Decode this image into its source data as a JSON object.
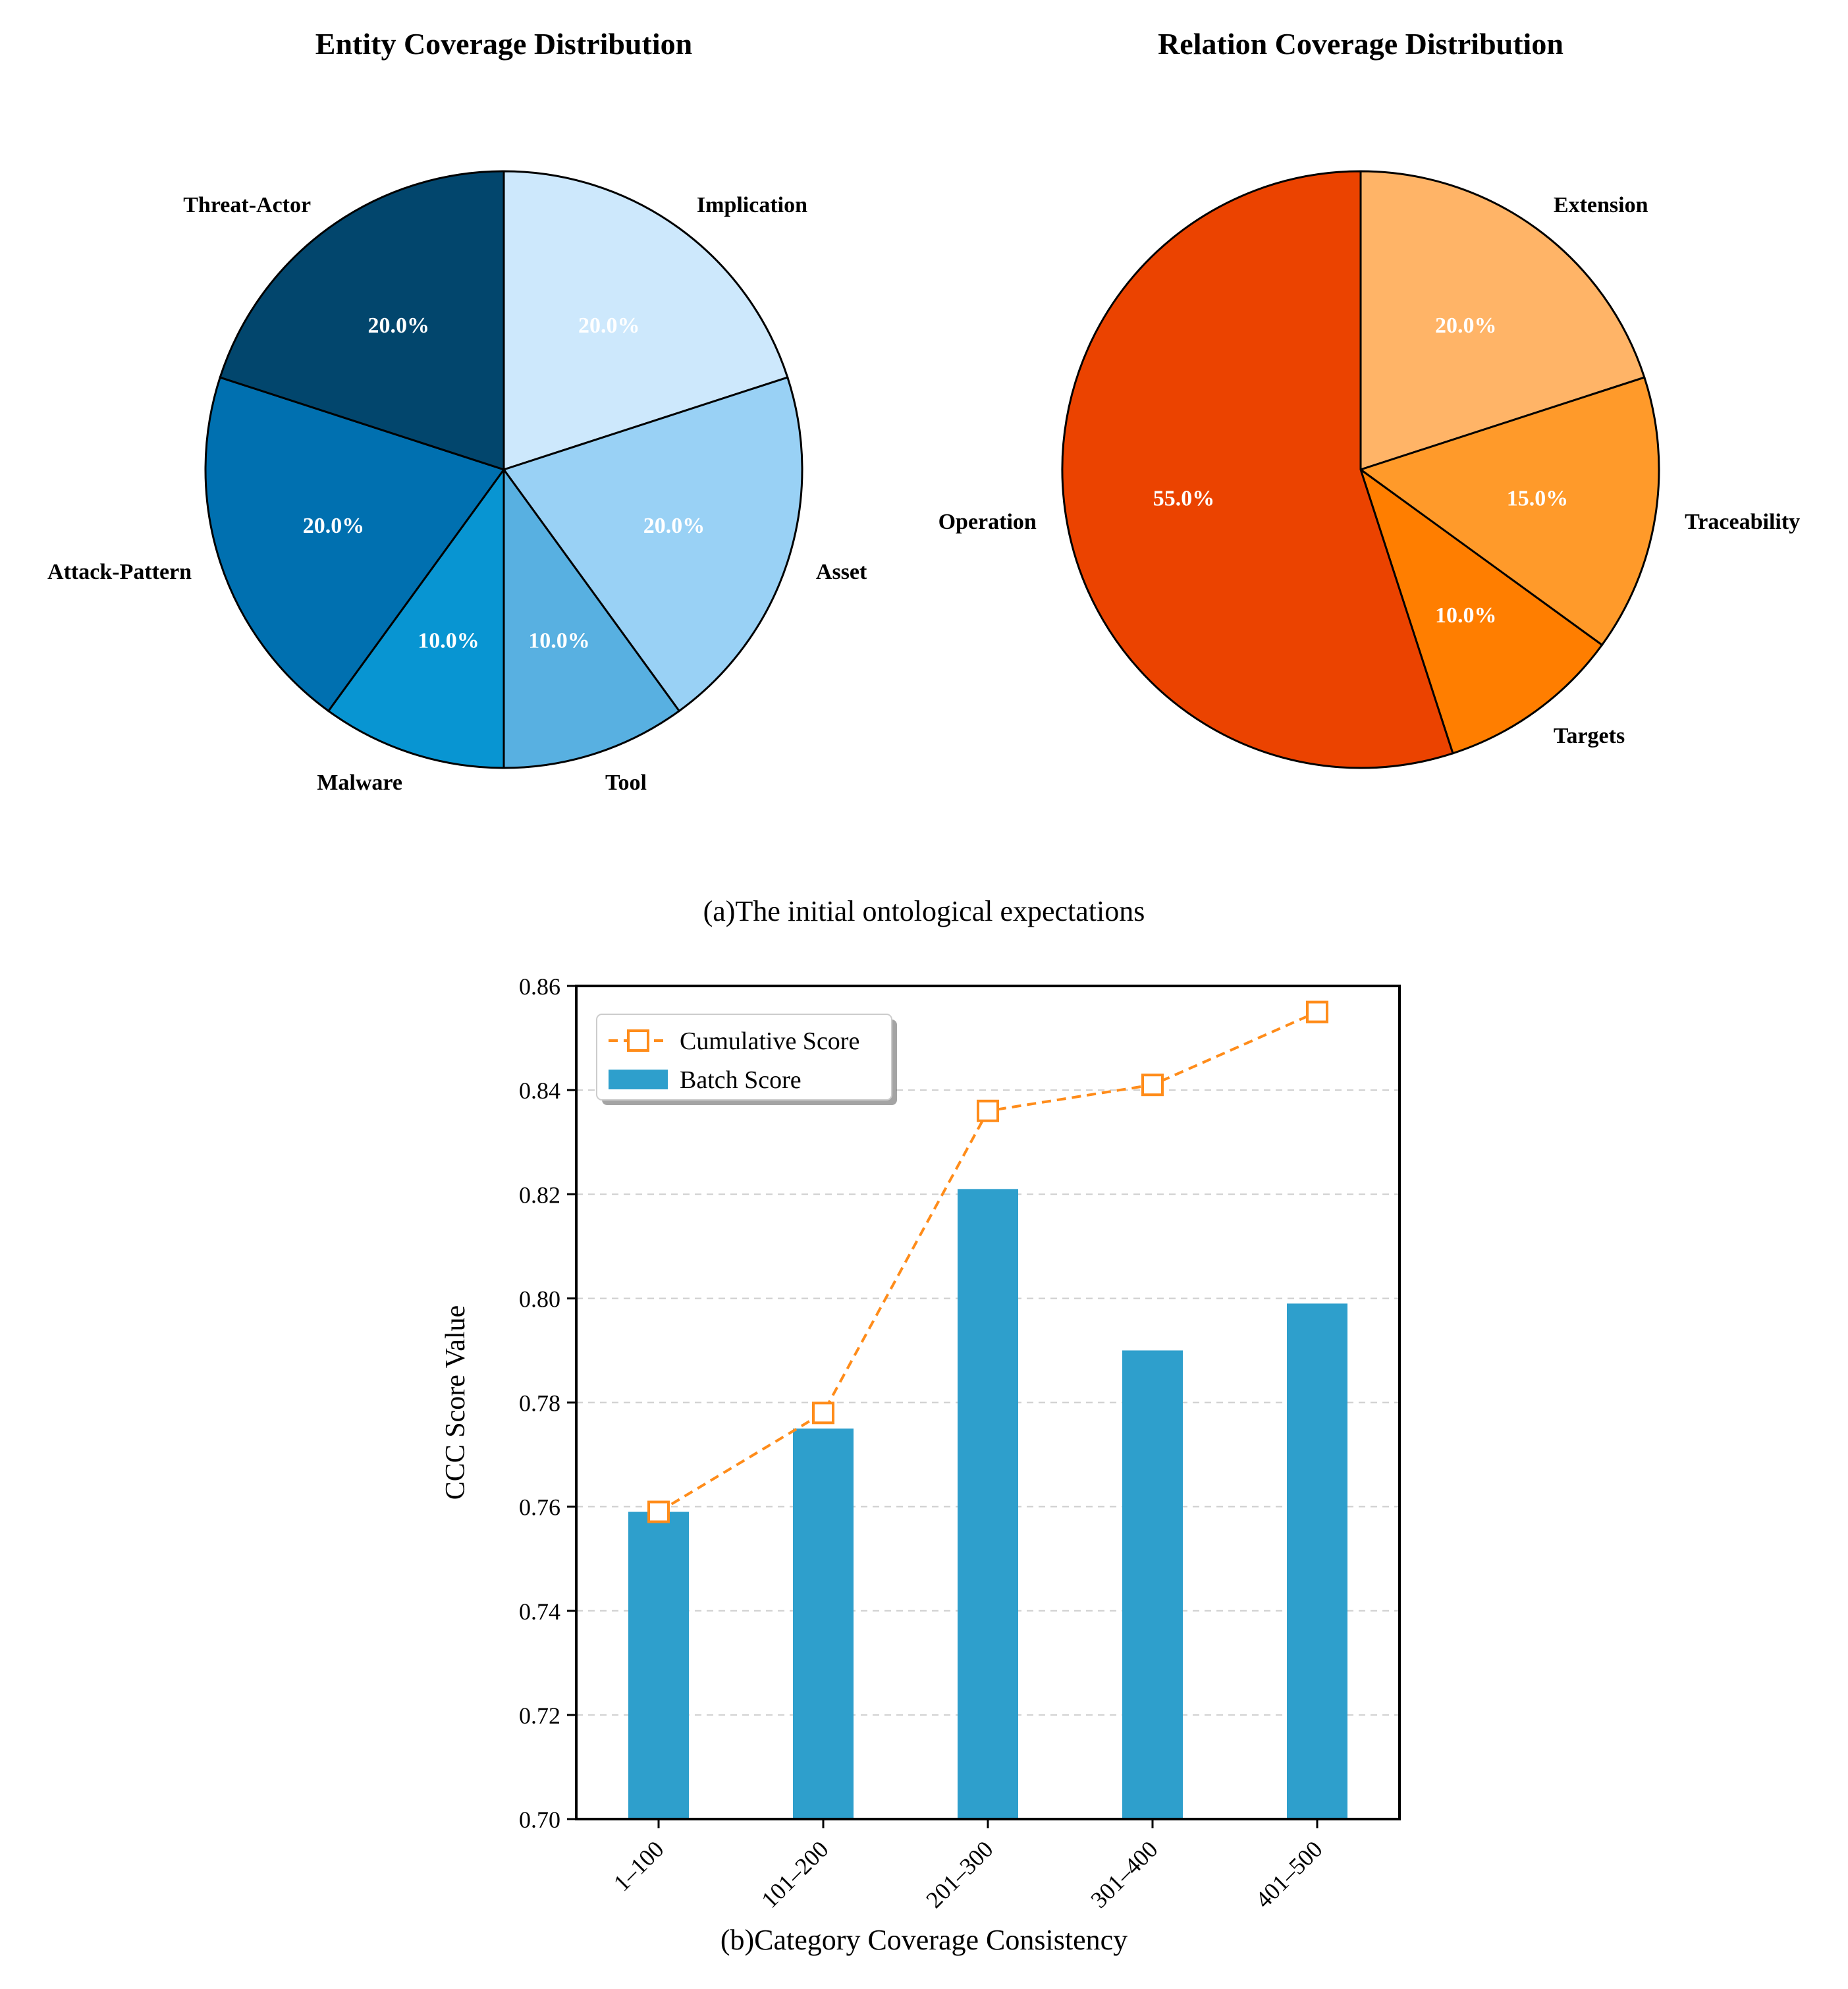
{
  "figure": {
    "caption_a": "(a)The initial ontological expectations",
    "caption_b": "(b)Category Coverage Consistency"
  },
  "chart_data": [
    {
      "type": "pie",
      "title": "Entity Coverage Distribution",
      "slices": [
        {
          "label": "Implication",
          "value": 20.0,
          "pct": "20.0%",
          "color": "#cde8fc"
        },
        {
          "label": "Asset",
          "value": 20.0,
          "pct": "20.0%",
          "color": "#99d1f5"
        },
        {
          "label": "Tool",
          "value": 10.0,
          "pct": "10.0%",
          "color": "#58b0e1"
        },
        {
          "label": "Malware",
          "value": 10.0,
          "pct": "10.0%",
          "color": "#0895d2"
        },
        {
          "label": "Attack-Pattern",
          "value": 20.0,
          "pct": "20.0%",
          "color": "#0070b0"
        },
        {
          "label": "Threat-Actor",
          "value": 20.0,
          "pct": "20.0%",
          "color": "#02466d"
        }
      ],
      "start": "top",
      "direction": "clockwise"
    },
    {
      "type": "pie",
      "title": "Relation Coverage Distribution",
      "slices": [
        {
          "label": "Extension",
          "value": 20.0,
          "pct": "20.0%",
          "color": "#ffb467"
        },
        {
          "label": "Traceability",
          "value": 15.0,
          "pct": "15.0%",
          "color": "#ff9a2a"
        },
        {
          "label": "Targets",
          "value": 10.0,
          "pct": "10.0%",
          "color": "#ff7e00"
        },
        {
          "label": "Operation",
          "value": 55.0,
          "pct": "55.0%",
          "color": "#eb4300"
        }
      ],
      "start": "top",
      "direction": "clockwise"
    },
    {
      "type": "bar",
      "categories": [
        "1–100",
        "101–200",
        "201–300",
        "301–400",
        "401–500"
      ],
      "series": [
        {
          "name": "Batch Score",
          "kind": "bar",
          "values": [
            0.759,
            0.775,
            0.821,
            0.79,
            0.799
          ],
          "color": "#2e9fcc"
        },
        {
          "name": "Cumulative Score",
          "kind": "line",
          "values": [
            0.759,
            0.778,
            0.836,
            0.841,
            0.855
          ],
          "color": "#ff8c1a"
        }
      ],
      "ylabel": "CCC Score Value",
      "xlabel": "",
      "ylim": [
        0.7,
        0.86
      ],
      "yticks": [
        "0.70",
        "0.72",
        "0.74",
        "0.76",
        "0.78",
        "0.80",
        "0.82",
        "0.84",
        "0.86"
      ],
      "grid": "y-dashed",
      "legend": "top-left"
    }
  ]
}
